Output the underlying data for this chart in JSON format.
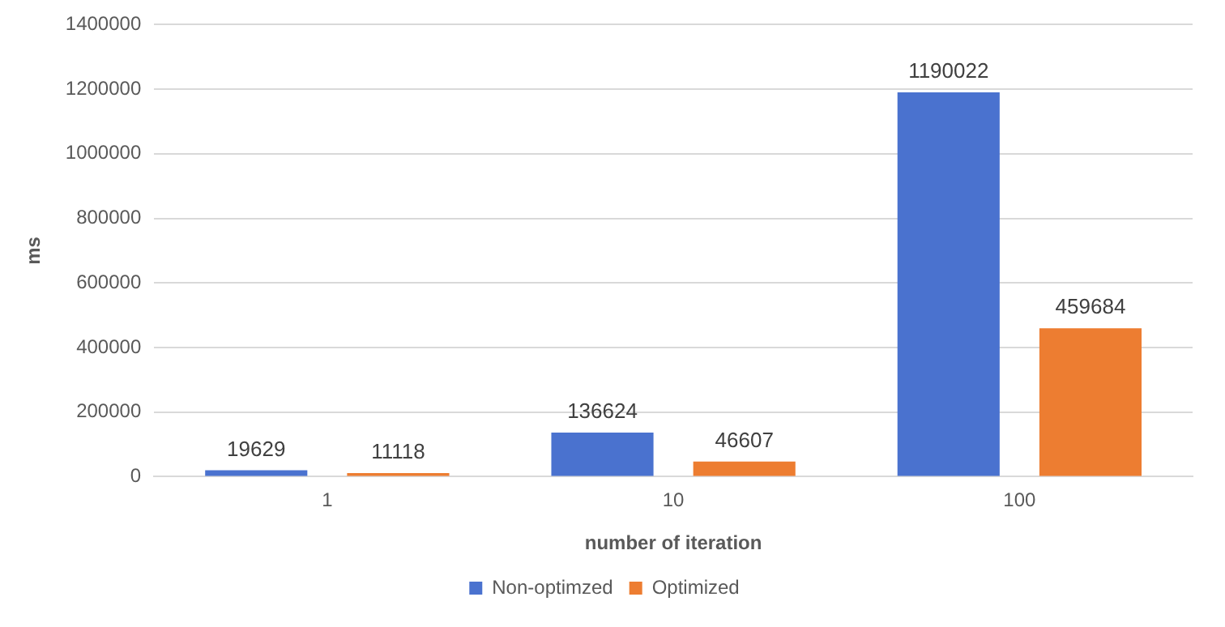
{
  "chart_data": {
    "type": "bar",
    "xlabel": "number of iteration",
    "ylabel": "ms",
    "categories": [
      "1",
      "10",
      "100"
    ],
    "series": [
      {
        "name": "Non-optimzed",
        "color": "#4a72cf",
        "values": [
          19629,
          136624,
          1190022
        ]
      },
      {
        "name": "Optimized",
        "color": "#ed7d31",
        "values": [
          11118,
          46607,
          459684
        ]
      }
    ],
    "ylim": [
      0,
      1400000
    ],
    "yticks": [
      0,
      200000,
      400000,
      600000,
      800000,
      1000000,
      1200000,
      1400000
    ],
    "grid": "y",
    "legend": "bottom",
    "data_labels": true
  }
}
